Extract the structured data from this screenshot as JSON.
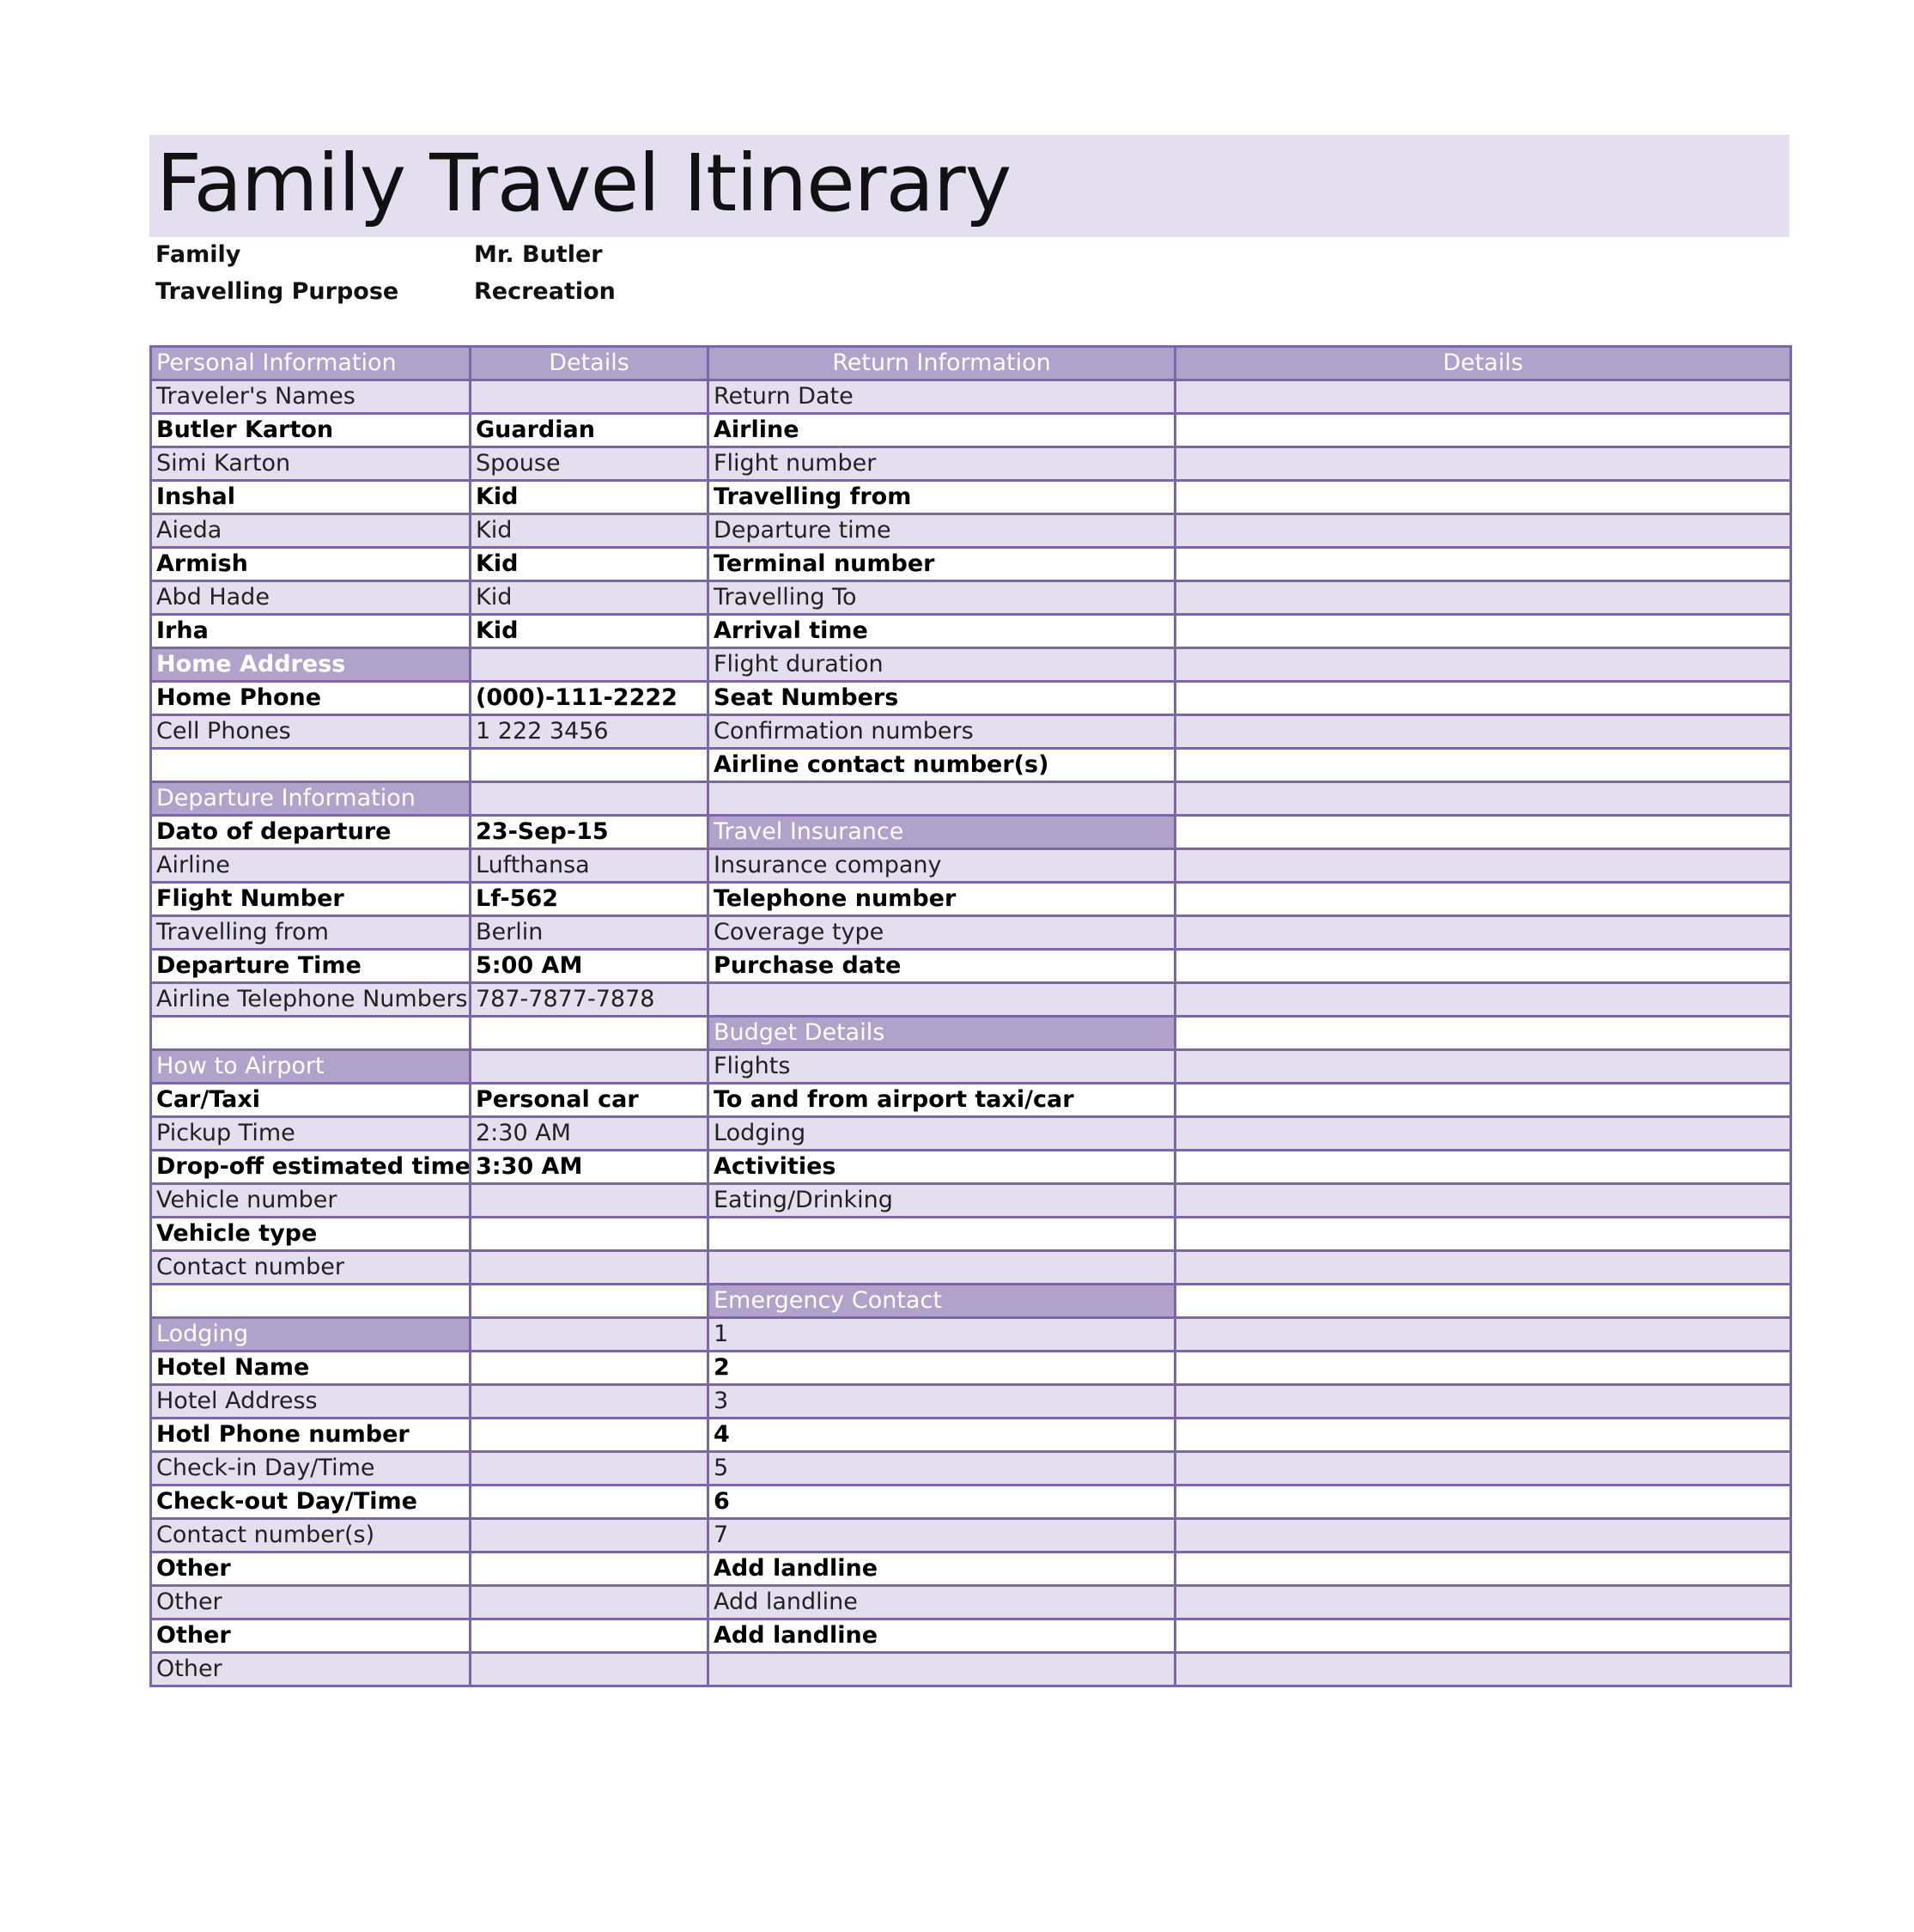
{
  "title": "Family Travel Itinerary",
  "meta": [
    {
      "label": "Family",
      "value": "Mr. Butler"
    },
    {
      "label": "Travelling Purpose",
      "value": "Recreation"
    }
  ],
  "colors": {
    "header_fill": "#b1a2cb",
    "band_fill": "#e4dfee",
    "border": "#7d66a6"
  },
  "headers": [
    "Personal Information",
    "Details",
    "Return Information",
    "Details"
  ],
  "rows": [
    {
      "cells": [
        "Traveler's Names",
        "",
        "Return Date",
        ""
      ]
    },
    {
      "cells": [
        "Butler Karton",
        "Guardian",
        "Airline",
        ""
      ]
    },
    {
      "cells": [
        "Simi Karton",
        "Spouse",
        "Flight number",
        ""
      ]
    },
    {
      "cells": [
        "Inshal",
        "Kid",
        "Travelling from",
        ""
      ]
    },
    {
      "cells": [
        "Aieda",
        "Kid",
        "Departure time",
        ""
      ]
    },
    {
      "cells": [
        "Armish",
        "Kid",
        "Terminal number",
        ""
      ]
    },
    {
      "cells": [
        "Abd Hade",
        "Kid",
        "Travelling To",
        ""
      ]
    },
    {
      "cells": [
        "Irha",
        "Kid",
        "Arrival time",
        ""
      ]
    },
    {
      "cells": [
        "Home Address",
        "",
        "Flight duration",
        ""
      ],
      "section": [
        0
      ],
      "bold_section": true
    },
    {
      "cells": [
        "Home Phone",
        "(000)-111-2222",
        "Seat Numbers",
        ""
      ]
    },
    {
      "cells": [
        "Cell Phones",
        "1 222 3456",
        "Confirmation numbers",
        ""
      ]
    },
    {
      "cells": [
        "",
        "",
        "Airline contact number(s)",
        ""
      ]
    },
    {
      "cells": [
        "Departure Information",
        "",
        "",
        ""
      ],
      "section": [
        0
      ]
    },
    {
      "cells": [
        "Dato of departure",
        "23-Sep-15",
        "Travel Insurance",
        ""
      ],
      "section": [
        2
      ]
    },
    {
      "cells": [
        "Airline",
        "Lufthansa",
        "Insurance company",
        ""
      ]
    },
    {
      "cells": [
        "Flight Number",
        "Lf-562",
        "Telephone number",
        ""
      ]
    },
    {
      "cells": [
        "Travelling from",
        "Berlin",
        "Coverage type",
        ""
      ]
    },
    {
      "cells": [
        "Departure Time",
        "5:00 AM",
        "Purchase date",
        ""
      ]
    },
    {
      "cells": [
        "Airline Telephone Numbers",
        "787-7877-7878",
        "",
        ""
      ]
    },
    {
      "cells": [
        "",
        "",
        "Budget Details",
        ""
      ],
      "section": [
        2
      ]
    },
    {
      "cells": [
        "How to Airport",
        "",
        "Flights",
        ""
      ],
      "section": [
        0
      ]
    },
    {
      "cells": [
        "Car/Taxi",
        "Personal car",
        "To and from airport taxi/car",
        ""
      ]
    },
    {
      "cells": [
        "Pickup Time",
        "2:30 AM",
        "Lodging",
        ""
      ]
    },
    {
      "cells": [
        "Drop-off estimated time",
        "3:30 AM",
        "Activities",
        ""
      ]
    },
    {
      "cells": [
        "Vehicle number",
        "",
        "Eating/Drinking",
        ""
      ]
    },
    {
      "cells": [
        "Vehicle type",
        "",
        "",
        ""
      ]
    },
    {
      "cells": [
        "Contact number",
        "",
        "",
        ""
      ]
    },
    {
      "cells": [
        "",
        "",
        "Emergency Contact",
        ""
      ],
      "section": [
        2
      ]
    },
    {
      "cells": [
        "Lodging",
        "",
        "1",
        ""
      ],
      "section": [
        0
      ]
    },
    {
      "cells": [
        "Hotel Name",
        "",
        "2",
        ""
      ]
    },
    {
      "cells": [
        "Hotel Address",
        "",
        "3",
        ""
      ]
    },
    {
      "cells": [
        "Hotl Phone number",
        "",
        "4",
        ""
      ]
    },
    {
      "cells": [
        "Check-in Day/Time",
        "",
        "5",
        ""
      ]
    },
    {
      "cells": [
        "Check-out Day/Time",
        "",
        "6",
        ""
      ]
    },
    {
      "cells": [
        "Contact number(s)",
        "",
        "7",
        ""
      ]
    },
    {
      "cells": [
        "Other",
        "",
        "Add landline",
        ""
      ]
    },
    {
      "cells": [
        "Other",
        "",
        "Add landline",
        ""
      ]
    },
    {
      "cells": [
        "Other",
        "",
        "Add landline",
        ""
      ]
    },
    {
      "cells": [
        "Other",
        "",
        "",
        ""
      ]
    }
  ]
}
